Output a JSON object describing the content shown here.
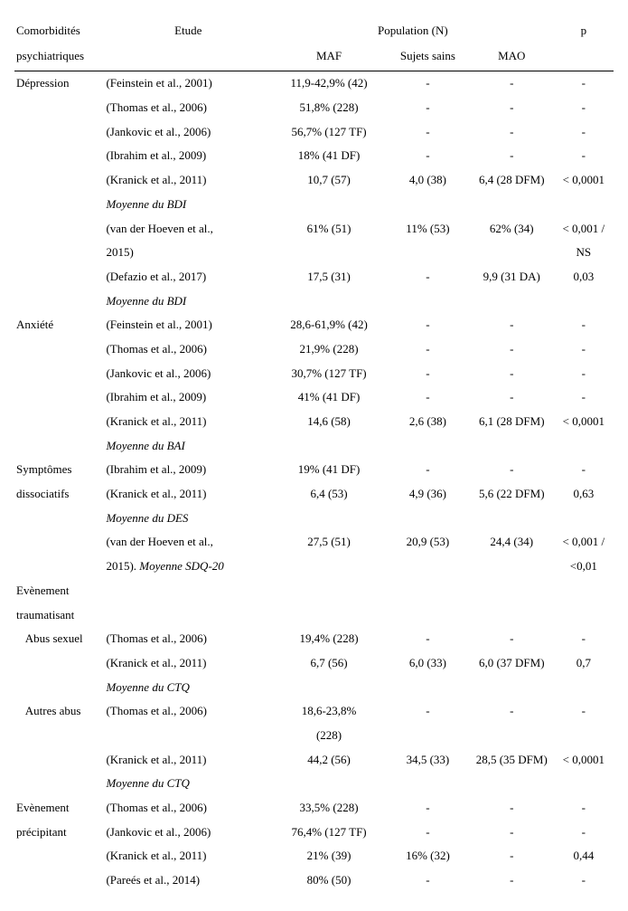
{
  "headers": {
    "comorbid_line1": "Comorbidités",
    "comorbid_line2": "psychiatriques",
    "study": "Etude",
    "population": "Population (N)",
    "p": "p",
    "maf": "MAF",
    "sains": "Sujets sains",
    "mao": "MAO"
  },
  "sections": {
    "depression": {
      "label": "Dépression",
      "rows": [
        {
          "study": "(Feinstein et al., 2001)",
          "maf": "11,9-42,9% (42)",
          "sains": "-",
          "mao": "-",
          "p": "-"
        },
        {
          "study": "(Thomas et al., 2006)",
          "maf": "51,8% (228)",
          "sains": "-",
          "mao": "-",
          "p": "-"
        },
        {
          "study": "(Jankovic et al., 2006)",
          "maf": "56,7% (127 TF)",
          "sains": "-",
          "mao": "-",
          "p": "-"
        },
        {
          "study": "(Ibrahim et al., 2009)",
          "maf": "18% (41 DF)",
          "sains": "-",
          "mao": "-",
          "p": "-"
        },
        {
          "study": "(Kranick et al., 2011)",
          "maf": "10,7 (57)",
          "sains": "4,0 (38)",
          "mao": "6,4 (28 DFM)",
          "p": "< 0,0001"
        },
        {
          "note": "Moyenne du BDI"
        },
        {
          "study": "(van der Hoeven et al.,",
          "maf": "61% (51)",
          "sains": "11% (53)",
          "mao": "62% (34)",
          "p": "< 0,001 /"
        },
        {
          "study": "2015)",
          "maf": "",
          "sains": "",
          "mao": "",
          "p": "NS"
        },
        {
          "study": "(Defazio et al., 2017)",
          "maf": "17,5 (31)",
          "sains": "-",
          "mao": "9,9 (31 DA)",
          "p": "0,03"
        },
        {
          "note": "Moyenne du BDI"
        }
      ]
    },
    "anxiete": {
      "label": "Anxiété",
      "rows": [
        {
          "study": "(Feinstein et al., 2001)",
          "maf": "28,6-61,9% (42)",
          "sains": "-",
          "mao": "-",
          "p": "-"
        },
        {
          "study": "(Thomas et al., 2006)",
          "maf": "21,9% (228)",
          "sains": "-",
          "mao": "-",
          "p": "-"
        },
        {
          "study": "(Jankovic et al., 2006)",
          "maf": "30,7% (127 TF)",
          "sains": "-",
          "mao": "-",
          "p": "-"
        },
        {
          "study": "(Ibrahim et al., 2009)",
          "maf": "41% (41 DF)",
          "sains": "-",
          "mao": "-",
          "p": "-"
        },
        {
          "study": "(Kranick et al., 2011)",
          "maf": "14,6 (58)",
          "sains": "2,6 (38)",
          "mao": "6,1 (28 DFM)",
          "p": "< 0,0001"
        },
        {
          "note": "Moyenne du BAI"
        }
      ]
    },
    "dissoc": {
      "label1": "Symptômes",
      "label2": "dissociatifs",
      "rows": [
        {
          "study": "(Ibrahim et al., 2009)",
          "maf": "19% (41 DF)",
          "sains": "-",
          "mao": "-",
          "p": "-"
        },
        {
          "study": "(Kranick et al., 2011)",
          "maf": "6,4 (53)",
          "sains": "4,9 (36)",
          "mao": "5,6 (22 DFM)",
          "p": "0,63"
        },
        {
          "note": "Moyenne du DES"
        },
        {
          "study": "(van der Hoeven et al.,",
          "maf": "27,5 (51)",
          "sains": "20,9 (53)",
          "mao": "24,4 (34)",
          "p": "< 0,001 /"
        },
        {
          "study_html": "2015). <i>Moyenne SDQ-20</i>",
          "maf": "",
          "sains": "",
          "mao": "",
          "p": "<0,01"
        }
      ]
    },
    "evt": {
      "label1": "Evènement",
      "label2": "traumatisant"
    },
    "abus_sex": {
      "label": "Abus sexuel",
      "indent": true,
      "rows": [
        {
          "study": "(Thomas et al., 2006)",
          "maf": "19,4% (228)",
          "sains": "-",
          "mao": "-",
          "p": "-"
        },
        {
          "study": "(Kranick et al., 2011)",
          "maf": "6,7 (56)",
          "sains": "6,0 (33)",
          "mao": "6,0 (37 DFM)",
          "p": "0,7"
        },
        {
          "note": "Moyenne du CTQ"
        }
      ]
    },
    "autres_abus": {
      "label": "Autres abus",
      "indent": true,
      "rows": [
        {
          "study": "(Thomas et al., 2006)",
          "maf": "18,6-23,8%",
          "sains": "-",
          "mao": "-",
          "p": "-"
        },
        {
          "study": "",
          "maf": "(228)",
          "sains": "",
          "mao": "",
          "p": ""
        },
        {
          "study": "(Kranick et al., 2011)",
          "maf": "44,2 (56)",
          "sains": "34,5 (33)",
          "mao": "28,5 (35 DFM)",
          "p": "< 0,0001"
        },
        {
          "note": "Moyenne du CTQ"
        }
      ]
    },
    "precip": {
      "label1": "Evènement",
      "label2": "précipitant",
      "rows": [
        {
          "study": "(Thomas et al., 2006)",
          "maf": "33,5% (228)",
          "sains": "-",
          "mao": "-",
          "p": "-"
        },
        {
          "study": "(Jankovic et al., 2006)",
          "maf": "76,4% (127 TF)",
          "sains": "-",
          "mao": "-",
          "p": "-"
        },
        {
          "study": "(Kranick et al., 2011)",
          "maf": "21% (39)",
          "sains": "16% (32)",
          "mao": "-",
          "p": "0,44"
        },
        {
          "study": "(Pareés et al., 2014)",
          "maf": "80% (50)",
          "sains": "-",
          "mao": "-",
          "p": "-"
        }
      ]
    }
  }
}
